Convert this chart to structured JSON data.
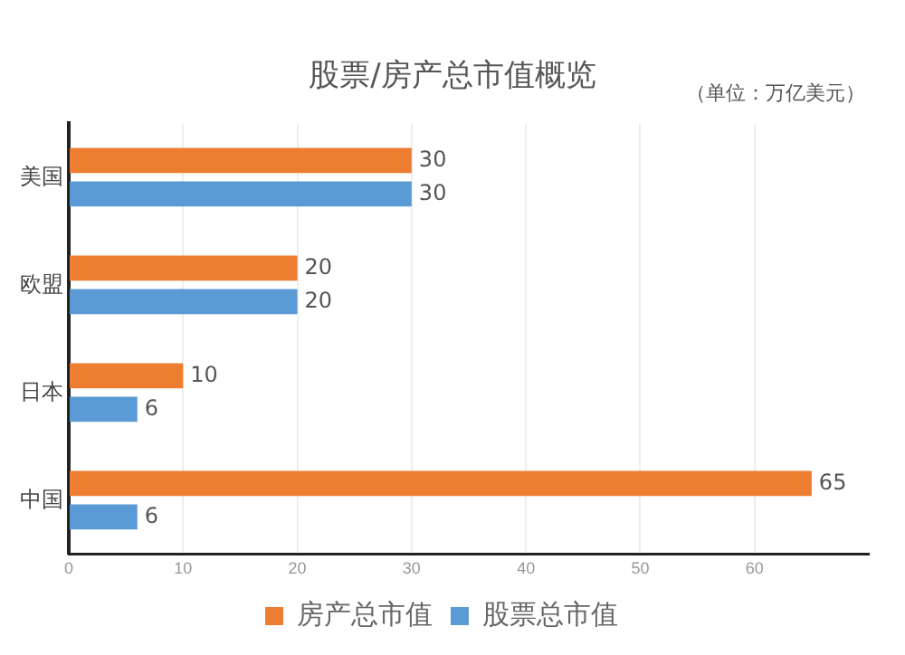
{
  "chart_data": {
    "type": "bar",
    "orientation": "horizontal",
    "title": "股票/房产总市值概览",
    "subtitle": "（单位：万亿美元）",
    "categories": [
      "美国",
      "欧盟",
      "日本",
      "中国"
    ],
    "series": [
      {
        "name": "房产总市值",
        "color": "#ed7d31",
        "values": [
          30,
          20,
          10,
          65
        ]
      },
      {
        "name": "股票总市值",
        "color": "#5b9bd5",
        "values": [
          30,
          20,
          6,
          6
        ]
      }
    ],
    "xlim": [
      0,
      70
    ],
    "xticks": [
      0,
      10,
      20,
      30,
      40,
      50,
      60
    ],
    "grid": "x",
    "legend": "bottom",
    "data_labels": true
  }
}
